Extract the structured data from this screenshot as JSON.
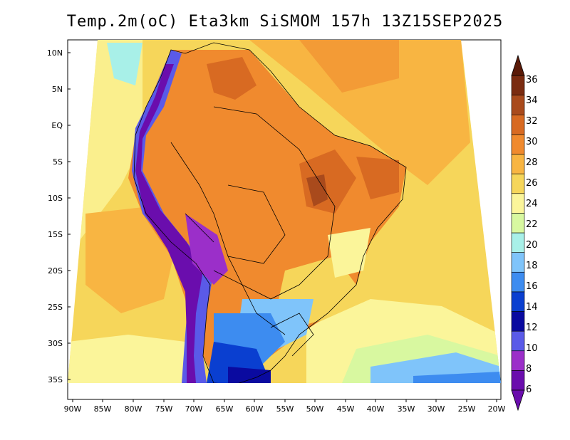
{
  "title": "Temp.2m(oC) Eta3km SiSMOM 157h 13Z15SEP2025",
  "map": {
    "lat_ticks": [
      "10N",
      "5N",
      "EQ",
      "5S",
      "10S",
      "15S",
      "20S",
      "25S",
      "30S",
      "35S"
    ],
    "lon_ticks": [
      "90W",
      "85W",
      "80W",
      "75W",
      "70W",
      "65W",
      "60W",
      "55W",
      "50W",
      "45W",
      "40W",
      "35W",
      "30W",
      "25W",
      "20W"
    ]
  },
  "colorbar": {
    "labels": [
      "6",
      "8",
      "10",
      "12",
      "14",
      "16",
      "18",
      "20",
      "22",
      "24",
      "26",
      "28",
      "30",
      "32",
      "34",
      "36"
    ],
    "colors": [
      "#6a0dad",
      "#9b2fc9",
      "#5a5ae8",
      "#0a0aa0",
      "#0a3fd0",
      "#3d8cf0",
      "#7fc4fa",
      "#a8f0e8",
      "#d8f8a0",
      "#fbf59a",
      "#f6d65a",
      "#f8b542",
      "#f08a2e",
      "#d86a22",
      "#a94a1c",
      "#7a2b10"
    ]
  }
}
